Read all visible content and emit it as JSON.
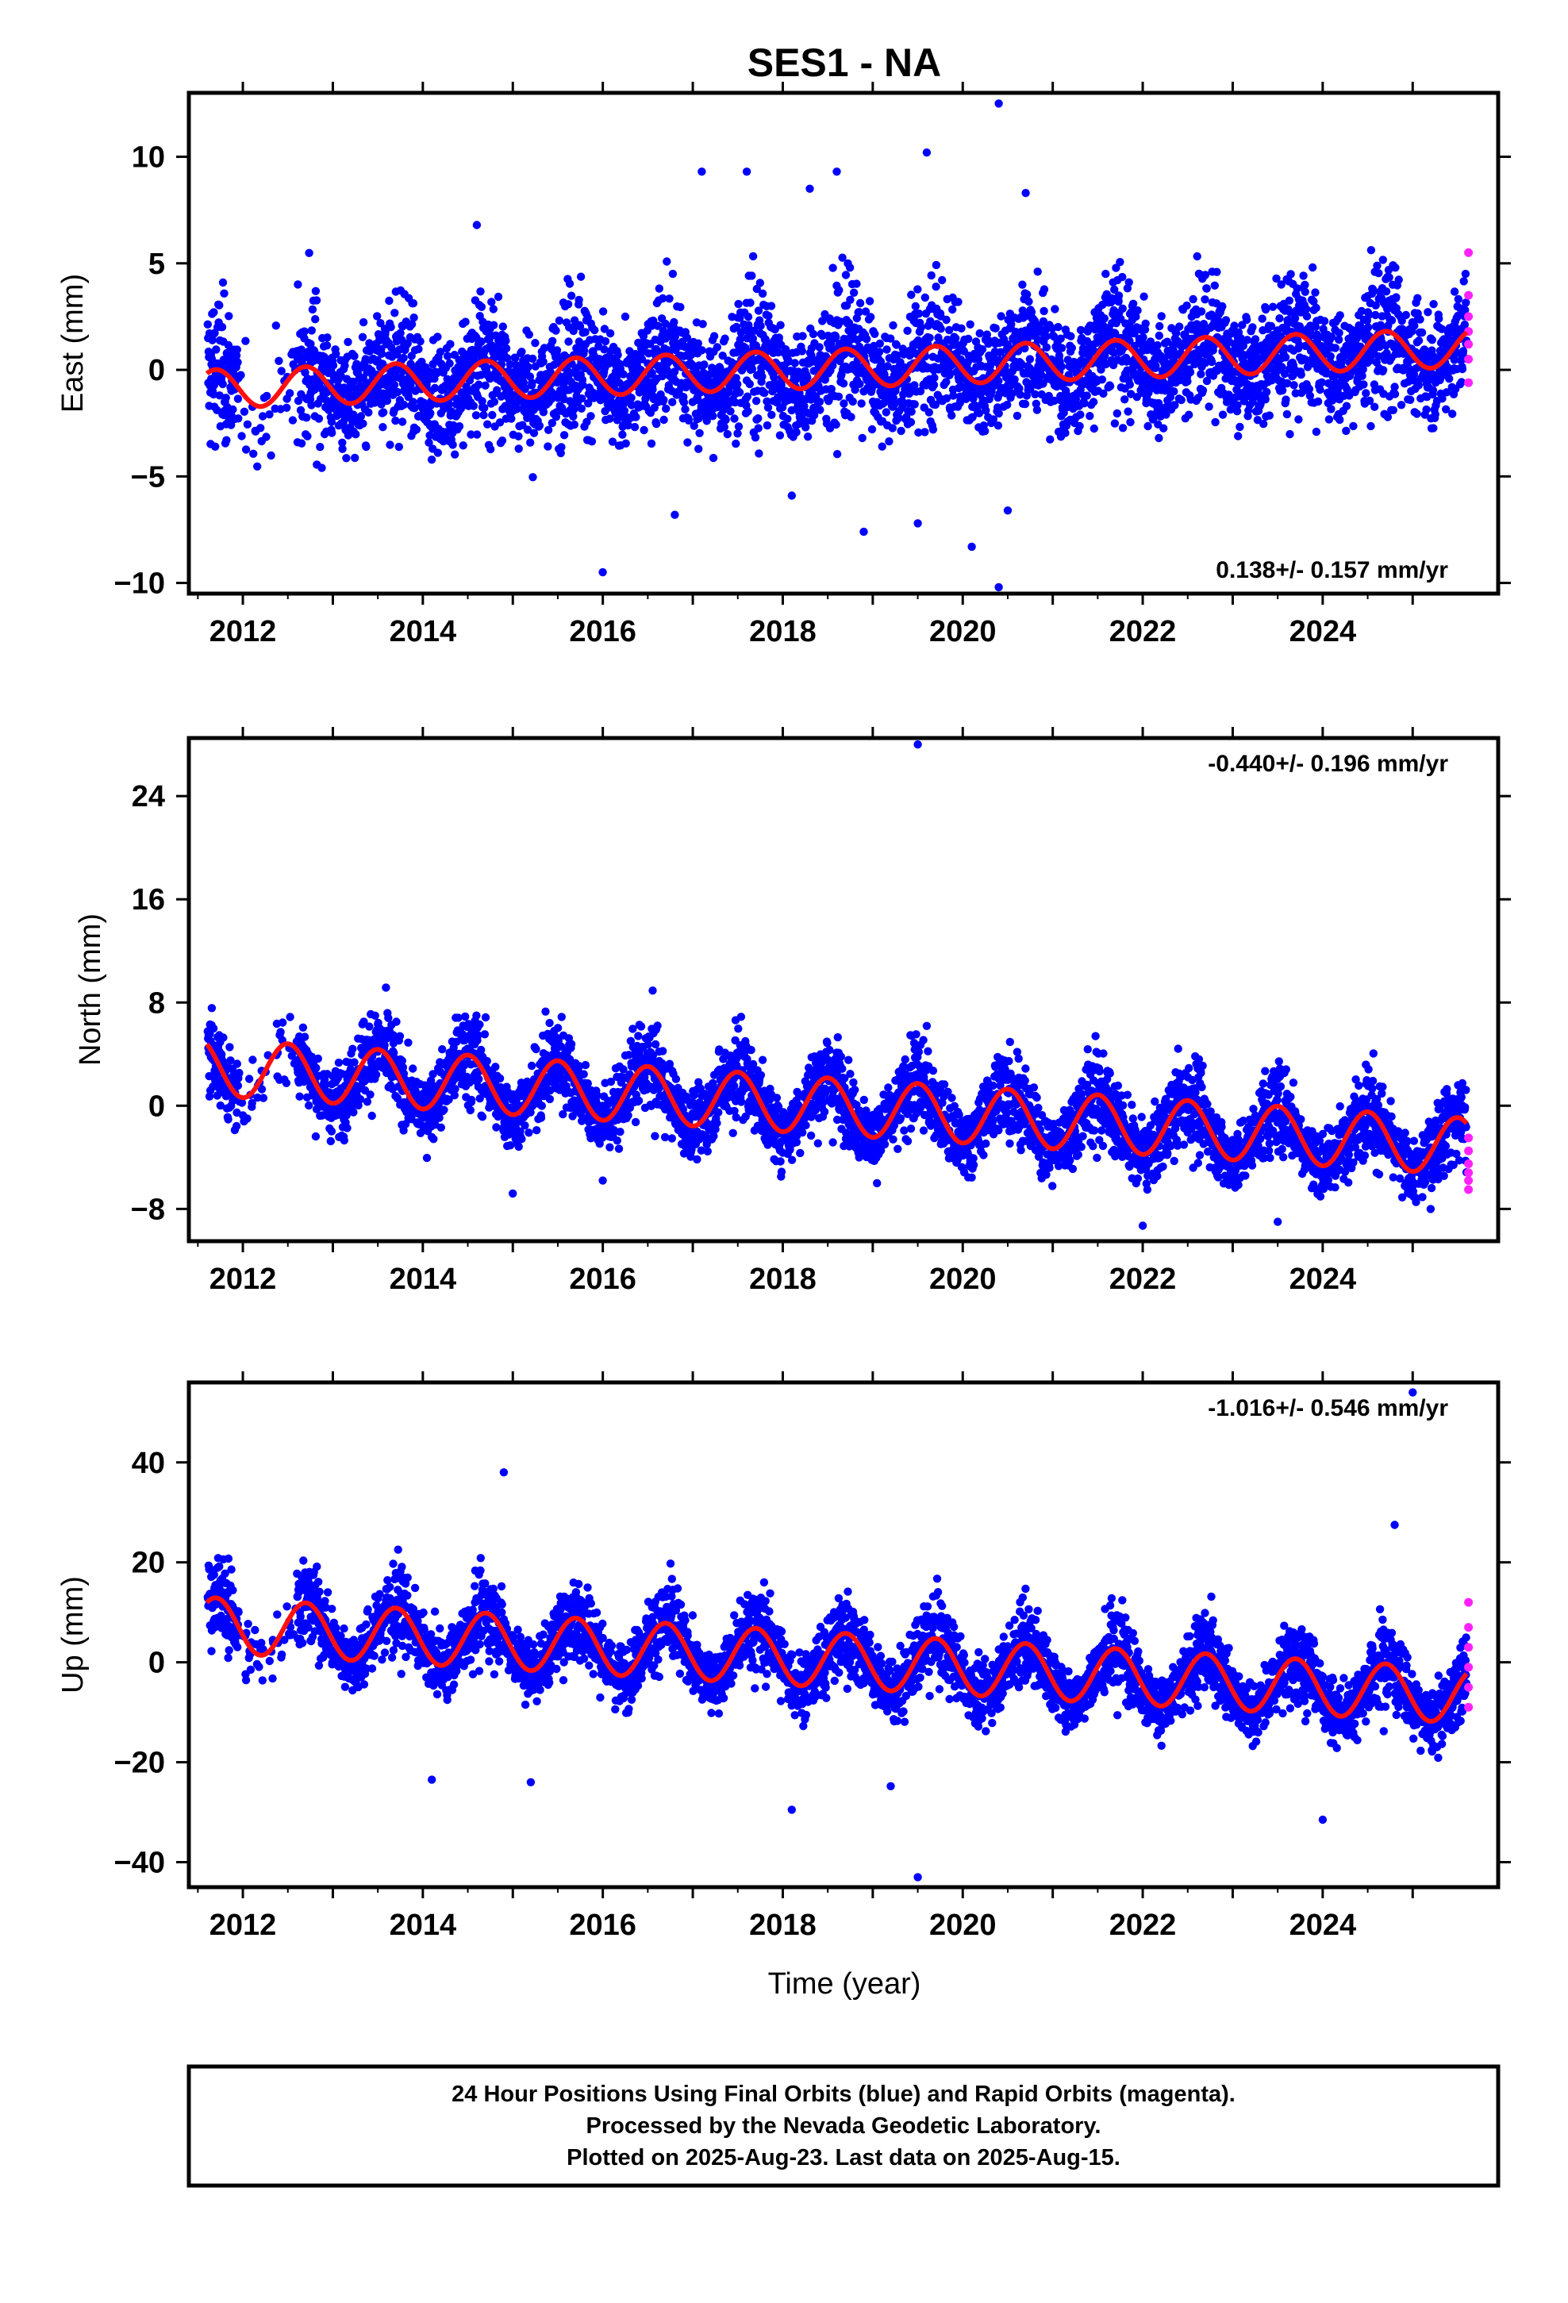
{
  "chart_data": {
    "title": "SES1 - NA",
    "type": "scatter",
    "xlabel": "Time (year)",
    "xlim": [
      2011.4,
      2025.95
    ],
    "xticks": [
      2012,
      2014,
      2016,
      2018,
      2020,
      2022,
      2024
    ],
    "colors": {
      "final": "#0000ff",
      "rapid": "#ff22ff",
      "model": "#ff1010"
    },
    "series_legend": [
      "Final Orbits (blue)",
      "Rapid Orbits (magenta)",
      "model fit (red line)"
    ],
    "panels": [
      {
        "id": "east",
        "ylabel": "East (mm)",
        "ylim": [
          -10.5,
          13
        ],
        "yticks": [
          -10,
          -5,
          0,
          5,
          10
        ],
        "rate_text": "0.138+/- 0.157 mm/yr",
        "rate_position": "bottom-right",
        "model": {
          "t0": 2011.6,
          "t1": 2025.6,
          "offset": -0.9,
          "rate": 0.138,
          "annual_amp": 0.9,
          "annual_phase_year": 2012.7
        },
        "scatter_sd": 1.6,
        "outliers": [
          [
            2014.6,
            6.8
          ],
          [
            2017.1,
            9.3
          ],
          [
            2017.6,
            9.3
          ],
          [
            2018.3,
            8.5
          ],
          [
            2018.6,
            9.3
          ],
          [
            2019.6,
            10.2
          ],
          [
            2020.4,
            12.5
          ],
          [
            2020.7,
            8.3
          ],
          [
            2016.0,
            -9.5
          ],
          [
            2020.1,
            -8.3
          ],
          [
            2020.4,
            -10.2
          ],
          [
            2019.5,
            -7.2
          ],
          [
            2016.8,
            -6.8
          ],
          [
            2018.9,
            -7.6
          ],
          [
            2020.5,
            -6.6
          ],
          [
            2018.1,
            -5.9
          ]
        ],
        "rapid_values": [
          5.5,
          3.5,
          2.5,
          1.8,
          1.2,
          0.5,
          -0.6
        ]
      },
      {
        "id": "north",
        "ylabel": "North (mm)",
        "ylim": [
          -10.5,
          28.5
        ],
        "yticks": [
          -8,
          0,
          8,
          16,
          24
        ],
        "rate_text": "-0.440+/- 0.196 mm/yr",
        "rate_position": "top-right",
        "model": {
          "t0": 2011.6,
          "t1": 2025.6,
          "offset": 3.0,
          "rate": -0.44,
          "annual_amp": 2.2,
          "annual_phase_year": 2012.5
        },
        "scatter_sd": 1.7,
        "outliers": [
          [
            2019.5,
            28.0
          ],
          [
            2015.0,
            -6.8
          ],
          [
            2016.0,
            -5.8
          ],
          [
            2022.0,
            -9.3
          ],
          [
            2023.5,
            -9.0
          ],
          [
            2025.2,
            -8.0
          ]
        ],
        "rapid_values": [
          -2.5,
          -3.5,
          -4.5,
          -5.2,
          -5.8,
          -6.5
        ]
      },
      {
        "id": "up",
        "ylabel": "Up (mm)",
        "ylim": [
          -45,
          56
        ],
        "yticks": [
          -40,
          -20,
          0,
          20,
          40
        ],
        "rate_text": "-1.016+/- 0.546 mm/yr",
        "rate_position": "top-right",
        "model": {
          "t0": 2011.6,
          "t1": 2025.6,
          "offset": 7.5,
          "rate": -1.016,
          "annual_amp": 5.5,
          "annual_phase_year": 2012.7
        },
        "scatter_sd": 4.0,
        "outliers": [
          [
            2014.9,
            38.0
          ],
          [
            2025.0,
            54.0
          ],
          [
            2024.8,
            27.5
          ],
          [
            2019.5,
            -43.0
          ],
          [
            2024.0,
            -31.5
          ],
          [
            2018.1,
            -29.5
          ],
          [
            2014.1,
            -23.5
          ],
          [
            2015.2,
            -24.0
          ],
          [
            2019.2,
            -24.8
          ]
        ],
        "rapid_values": [
          12.0,
          7.0,
          3.0,
          -1.0,
          -5.0,
          -9.0
        ]
      }
    ]
  },
  "footer": {
    "line1": "24 Hour Positions Using Final Orbits (blue) and Rapid Orbits (magenta).",
    "line2": "Processed by the Nevada Geodetic Laboratory.",
    "line3": "Plotted on 2025-Aug-23. Last data on 2025-Aug-15."
  }
}
